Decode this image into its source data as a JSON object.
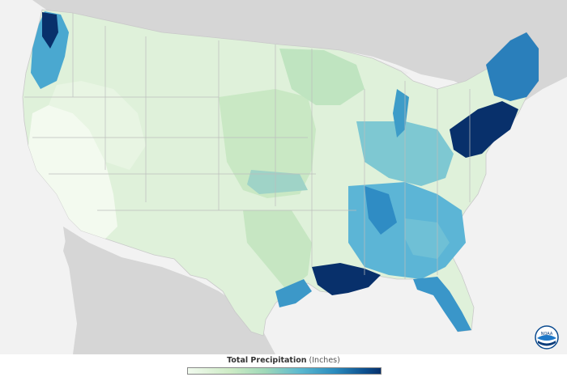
{
  "legend": {
    "title": "Total Precipitation",
    "unit": "(Inches)"
  },
  "logo": {
    "label": "NOAA"
  },
  "colors": {
    "background": "#f2f2f2",
    "neighbor_land": "#d8d8d8",
    "water": "#f2f2f2",
    "dry": "#f1faee",
    "light_green": "#d7efd2",
    "green": "#b8e3be",
    "teal": "#6cc3cf",
    "blue": "#2f8fc4",
    "dark_blue": "#08306b"
  },
  "legend_scale": [
    "#f1faee",
    "#cdebc5",
    "#9fd8b8",
    "#5cb9cf",
    "#2b8cbe",
    "#0c4f8e",
    "#08306b"
  ]
}
